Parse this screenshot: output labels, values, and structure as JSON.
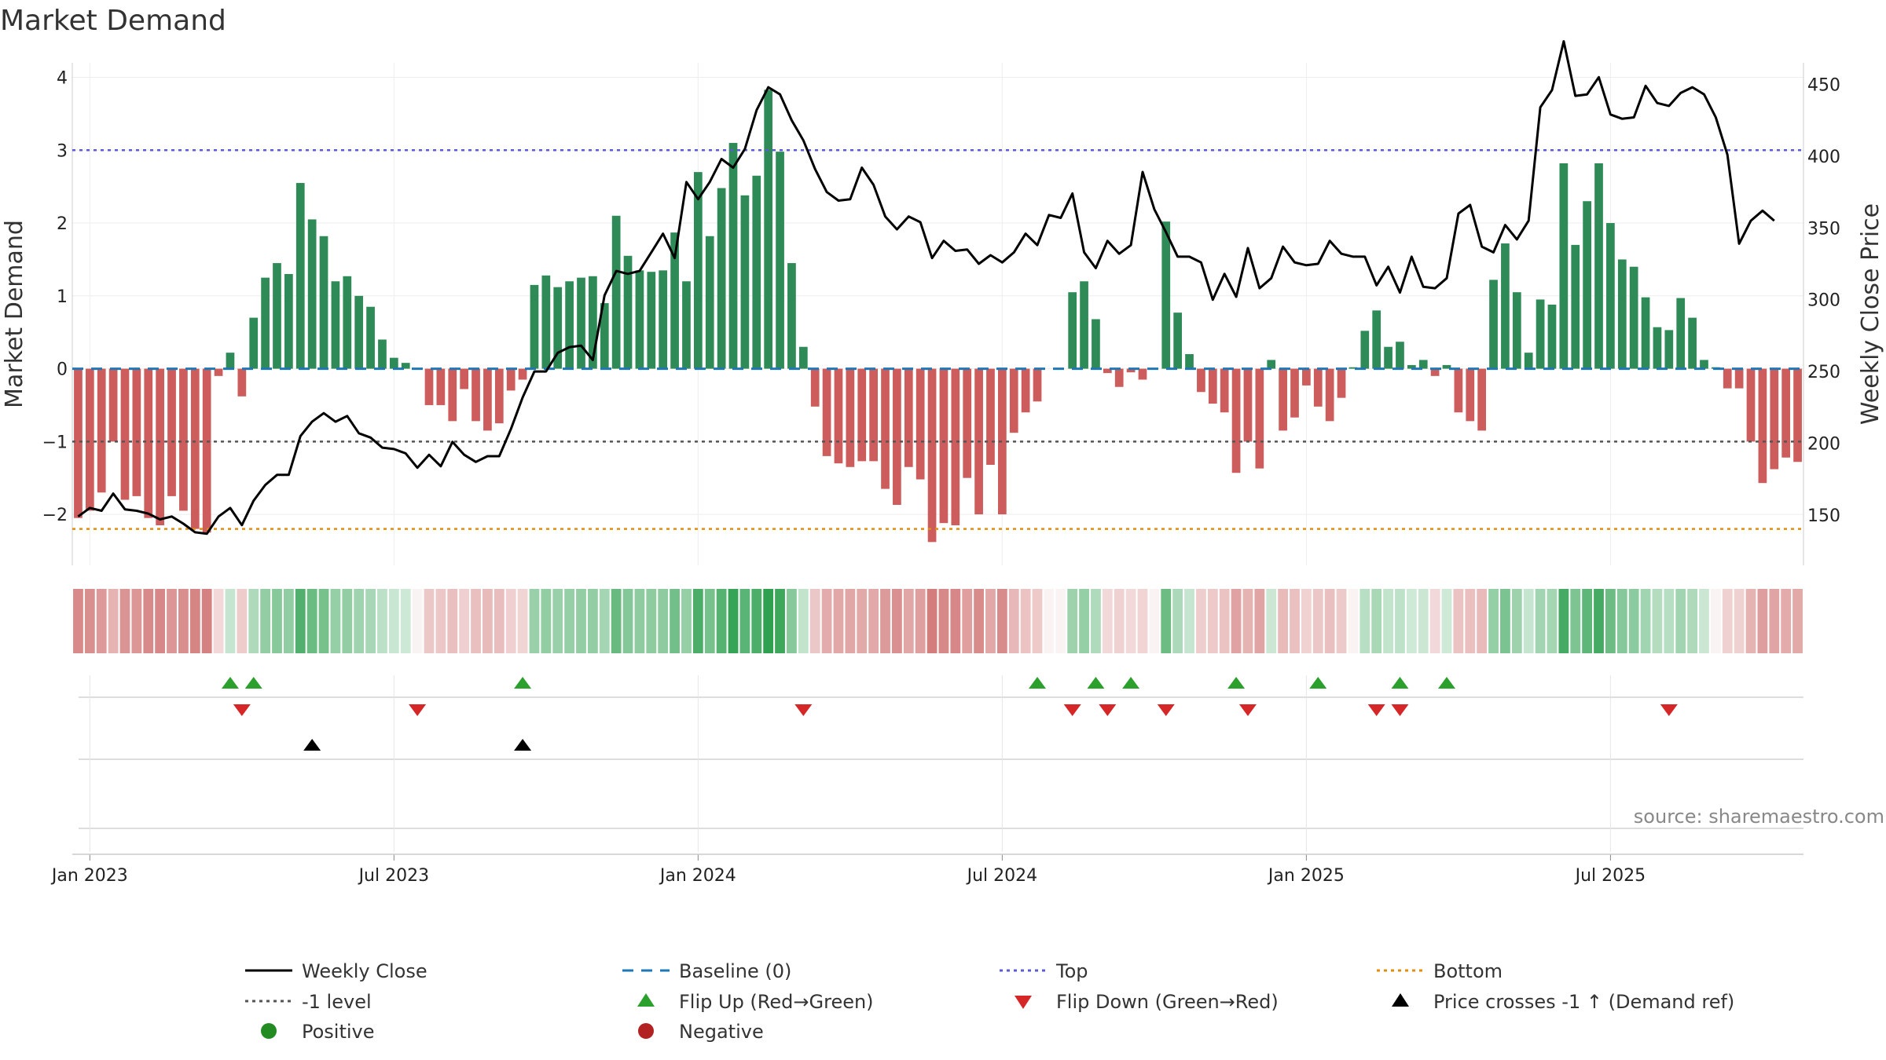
{
  "colors": {
    "positive_bar": "#2e8b57",
    "negative_bar": "#cd5c5c",
    "price_line": "#000000",
    "baseline": "#1f77b4",
    "top_line": "#5b5bd6",
    "bottom_line": "#e08e0b",
    "level_line": "#555555",
    "flip_up": "#2ca02c",
    "flip_down": "#d62728",
    "cross": "#000000",
    "positive_dot": "#228b22",
    "negative_dot": "#b22222",
    "grid": "#eeeeee"
  },
  "chart_data": {
    "type": "bar+line",
    "title": "Market Demand",
    "ylabel_left": "Market Demand",
    "ylabel_right": "Weekly Close Price",
    "source": "source: sharemaestro.com",
    "x_tick_labels": [
      "Jan 2023",
      "Jul 2023",
      "Jan 2024",
      "Jul 2024",
      "Jan 2025",
      "Jul 2025"
    ],
    "x_tick_weeks": [
      1,
      27,
      53,
      79,
      105,
      131
    ],
    "ylim_left": [
      -2.7,
      4.2
    ],
    "y_ticks_left": [
      -2,
      -1,
      0,
      1,
      2,
      3,
      4
    ],
    "ylim_right": [
      115,
      465
    ],
    "y_ticks_right": [
      150,
      200,
      250,
      300,
      350,
      400,
      450
    ],
    "reference_lines": {
      "top": 3.0,
      "bottom": -2.2,
      "level": -1.0,
      "baseline": 0
    },
    "demand": [
      -2.05,
      -1.95,
      -1.7,
      -1.0,
      -1.8,
      -1.75,
      -2.05,
      -2.15,
      -1.75,
      -1.95,
      -2.2,
      -2.25,
      -0.1,
      0.22,
      -0.38,
      0.7,
      1.25,
      1.45,
      1.3,
      2.55,
      2.05,
      1.82,
      1.2,
      1.27,
      1.0,
      0.85,
      0.4,
      0.15,
      0.08,
      0,
      -0.5,
      -0.5,
      -0.72,
      -0.28,
      -0.72,
      -0.85,
      -0.75,
      -0.3,
      -0.15,
      1.15,
      1.28,
      1.12,
      1.2,
      1.25,
      1.27,
      0.9,
      2.1,
      1.55,
      1.35,
      1.33,
      1.35,
      1.87,
      1.2,
      2.7,
      1.82,
      2.48,
      3.1,
      2.38,
      2.65,
      3.83,
      2.98,
      1.45,
      0.3,
      -0.52,
      -1.2,
      -1.3,
      -1.35,
      -1.27,
      -1.27,
      -1.65,
      -1.87,
      -1.35,
      -1.52,
      -2.38,
      -2.12,
      -2.15,
      -1.5,
      -2.0,
      -1.32,
      -2.0,
      -0.88,
      -0.6,
      -0.45,
      0,
      0,
      1.05,
      1.2,
      0.68,
      -0.06,
      -0.25,
      -0.05,
      -0.15,
      0,
      2.02,
      0.77,
      0.2,
      -0.32,
      -0.48,
      -0.6,
      -1.43,
      -1.0,
      -1.37,
      0.12,
      -0.85,
      -0.67,
      -0.23,
      -0.52,
      -0.72,
      -0.4,
      0.02,
      0.52,
      0.8,
      0.3,
      0.37,
      0.05,
      0.12,
      -0.1,
      0.05,
      -0.6,
      -0.72,
      -0.85,
      1.22,
      1.72,
      1.05,
      0.22,
      0.95,
      0.88,
      2.82,
      1.7,
      2.3,
      2.82,
      2.0,
      1.5,
      1.4,
      0.98,
      0.57,
      0.53,
      0.97,
      0.7,
      0.12,
      0.02,
      -0.27,
      -0.27,
      -1.0,
      -1.57,
      -1.38,
      -1.22,
      -1.28
    ],
    "weekly_close": [
      149,
      155,
      153,
      165,
      154,
      153,
      151,
      147,
      149,
      144,
      138,
      137,
      149,
      155,
      143,
      160,
      171,
      178,
      178,
      205,
      215,
      221,
      215,
      219,
      207,
      204,
      197,
      196,
      193,
      183,
      192,
      184,
      201,
      192,
      187,
      191,
      191,
      210,
      232,
      250,
      250,
      263,
      267,
      268,
      258,
      303,
      320,
      318,
      320,
      333,
      346,
      329,
      382,
      370,
      382,
      398,
      392,
      405,
      432,
      448,
      443,
      425,
      411,
      391,
      375,
      369,
      370,
      392,
      380,
      358,
      349,
      358,
      354,
      329,
      341,
      334,
      335,
      325,
      331,
      326,
      333,
      346,
      338,
      359,
      357,
      374,
      333,
      322,
      341,
      332,
      338,
      389,
      363,
      347,
      330,
      330,
      326,
      300,
      318,
      302,
      336,
      308,
      315,
      337,
      326,
      324,
      325,
      341,
      332,
      330,
      330,
      310,
      323,
      305,
      330,
      309,
      308,
      315,
      360,
      366,
      337,
      333,
      352,
      342,
      355,
      434,
      446,
      480,
      442,
      443,
      455,
      429,
      426,
      427,
      449,
      437,
      435,
      444,
      448,
      443,
      427,
      401,
      339,
      355,
      362,
      355
    ],
    "flip_up_weeks": [
      13,
      15,
      38,
      82,
      87,
      90,
      99,
      106,
      113,
      117
    ],
    "flip_down_weeks": [
      14,
      29,
      62,
      85,
      88,
      93,
      100,
      111,
      113,
      136
    ],
    "price_cross_weeks": [
      20,
      38
    ],
    "legend": [
      "Weekly Close",
      "Baseline (0)",
      "Top",
      "Bottom",
      "-1 level",
      "Flip Up (Red→Green)",
      "Flip Down (Green→Red)",
      "Price crosses -1 ↑ (Demand ref)",
      "Positive",
      "Negative"
    ]
  }
}
